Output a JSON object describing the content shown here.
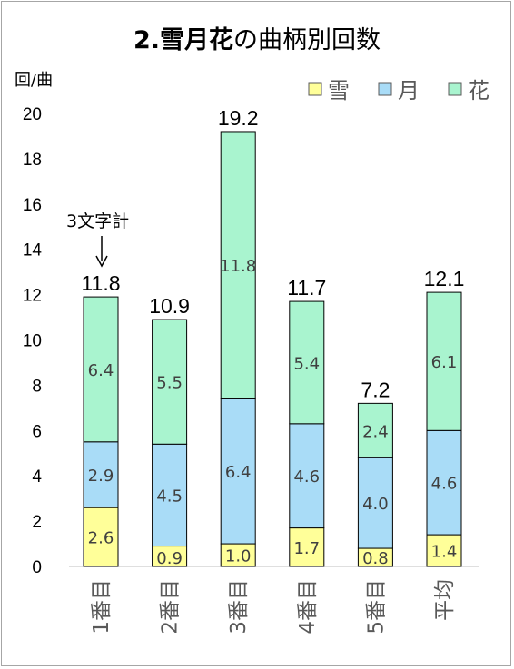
{
  "chart_data": {
    "type": "bar",
    "stacked": true,
    "title_number": "2.",
    "title_main": "雪月花",
    "title_rest": "の曲柄別回数",
    "ylabel": "回/曲",
    "ylim": [
      0,
      20
    ],
    "yticks": [
      0,
      2,
      4,
      6,
      8,
      10,
      12,
      14,
      16,
      18,
      20
    ],
    "categories": [
      "1番目",
      "2番目",
      "3番目",
      "4番目",
      "5番目",
      "平均"
    ],
    "series": [
      {
        "name": "雪",
        "color": "#ffff99",
        "values": [
          2.6,
          0.9,
          1.0,
          1.7,
          0.8,
          1.4
        ],
        "labels": [
          "2.6",
          "0.9",
          "1.0",
          "1.7",
          "0.8",
          "1.4"
        ]
      },
      {
        "name": "月",
        "color": "#a9dcf7",
        "values": [
          2.9,
          4.5,
          6.4,
          4.6,
          4.0,
          4.6
        ],
        "labels": [
          "2.9",
          "4.5",
          "6.4",
          "4.6",
          "4.0",
          "4.6"
        ]
      },
      {
        "name": "花",
        "color": "#a9f4cf",
        "values": [
          6.4,
          5.5,
          11.8,
          5.4,
          2.4,
          6.1
        ],
        "labels": [
          "6.4",
          "5.5",
          "11.8",
          "5.4",
          "2.4",
          "6.1"
        ]
      }
    ],
    "totals": [
      11.8,
      10.9,
      19.2,
      11.7,
      7.2,
      12.1
    ],
    "total_labels": [
      "11.8",
      "10.9",
      "19.2",
      "11.7",
      "7.2",
      "12.1"
    ],
    "annotation": "3文字計",
    "legend_position": "top-right",
    "grid": false
  }
}
